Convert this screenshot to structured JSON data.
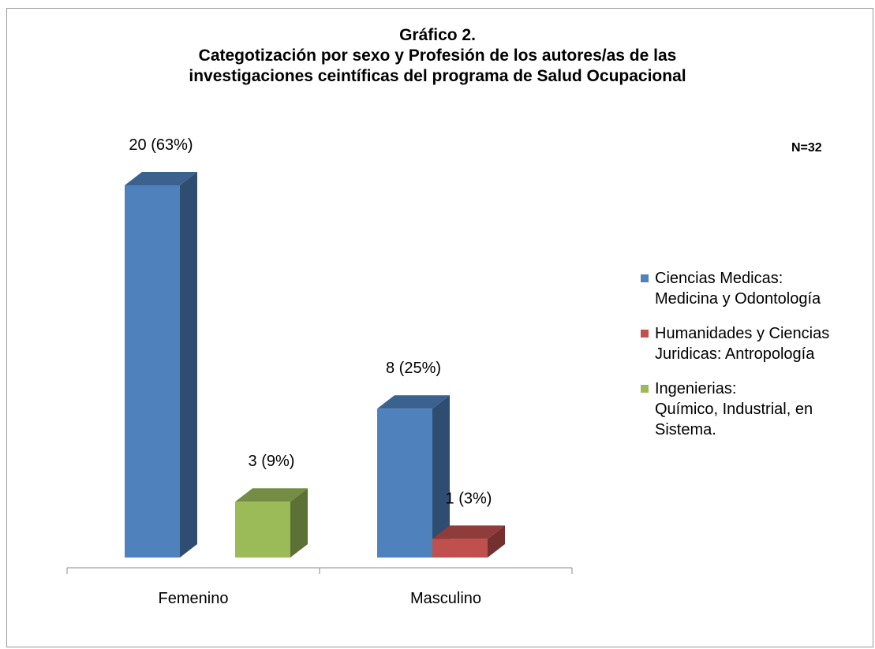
{
  "chart_data": {
    "type": "bar3d",
    "title": "Gráfico 2.",
    "subtitle": "Categotización por sexo y Profesión de los autores/as de las\ninvestigaciones ceintíficas del programa de Salud Ocupacional",
    "annotation": "N=32",
    "categories": [
      "Femenino",
      "Masculino"
    ],
    "series": [
      {
        "name": "Ciencias Medicas:\nMedicina y Odontología",
        "color": "#4f81bd",
        "values": [
          20,
          8
        ],
        "value_labels": [
          "20 (63%)",
          "8 (25%)"
        ]
      },
      {
        "name": "Humanidades y Ciencias\nJuridicas: Antropología",
        "color": "#c0504d",
        "values": [
          null,
          1
        ],
        "value_labels": [
          null,
          "1 (3%)"
        ]
      },
      {
        "name": "Ingenierias:\nQuímico, Industrial, en\nSistema.",
        "color": "#9bbb59",
        "values": [
          3,
          null
        ],
        "value_labels": [
          "3 (9%)",
          null
        ]
      }
    ]
  }
}
